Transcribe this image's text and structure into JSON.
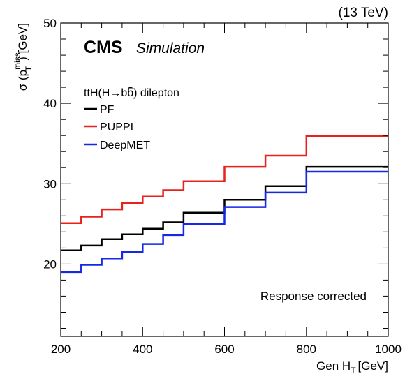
{
  "chart_data": {
    "type": "line",
    "energy_label": "(13 TeV)",
    "cms_label": "CMS",
    "cms_sublabel": "Simulation",
    "legend_title": "ttH(H→bb̄) dilepton",
    "annotation": "Response corrected",
    "xlabel": "Gen H",
    "xlabel_sub": "T",
    "xlabel_unit": "[GeV]",
    "ylabel": "σ (p",
    "ylabel_sup": "miss",
    "ylabel_sub": "T",
    "ylabel_unit": ") [GeV]",
    "xlim": [
      200,
      1000
    ],
    "ylim": [
      11,
      50
    ],
    "x_ticks": [
      200,
      400,
      600,
      800,
      1000
    ],
    "y_ticks": [
      20,
      30,
      40,
      50
    ],
    "bin_edges": [
      200,
      250,
      300,
      350,
      400,
      450,
      500,
      600,
      700,
      800,
      1000
    ],
    "series": [
      {
        "name": "PF",
        "color": "#000000",
        "values": [
          21.7,
          22.3,
          23.1,
          23.7,
          24.4,
          25.2,
          26.4,
          28.0,
          29.7,
          32.1
        ]
      },
      {
        "name": "PUPPI",
        "color": "#e8211c",
        "values": [
          25.1,
          25.9,
          26.8,
          27.6,
          28.4,
          29.2,
          30.3,
          32.1,
          33.5,
          35.9
        ]
      },
      {
        "name": "DeepMET",
        "color": "#1428e6",
        "values": [
          19.0,
          19.9,
          20.7,
          21.5,
          22.5,
          23.6,
          25.0,
          27.1,
          28.9,
          31.5
        ]
      }
    ],
    "grid": false,
    "legend_position": "top-left"
  }
}
